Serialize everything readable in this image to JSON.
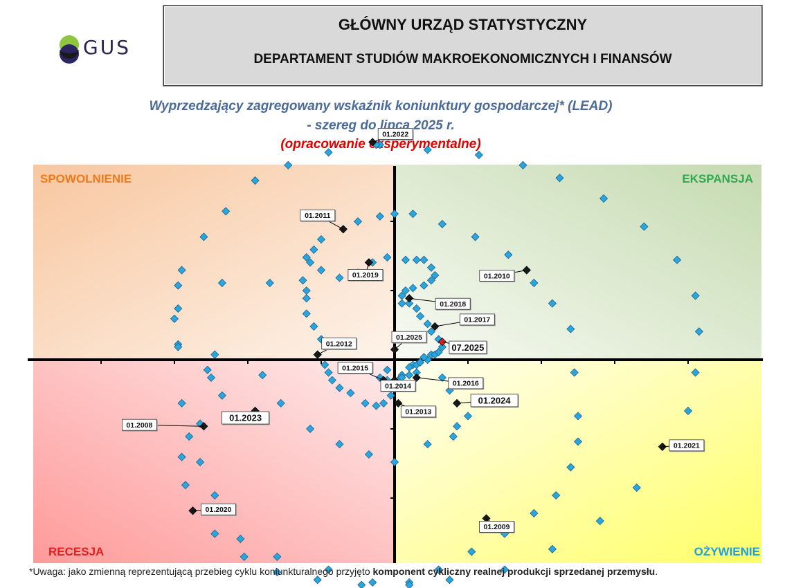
{
  "header": {
    "logo_text": "GUS",
    "title": "GŁÓWNY URZĄD STATYSTYCZNY",
    "subtitle": "DEPARTAMENT STUDIÓW MAKROEKONOMICZNYCH I FINANSÓW"
  },
  "chart_title": {
    "line1": "Wyprzedzający zagregowany wskaźnik koniunktury gospodarczej* (LEAD)",
    "line2": "- szereg do lipca 2025 r.",
    "line3": "(opracowanie eksperymentalne)"
  },
  "footnote": {
    "prefix": "*Uwaga: jako zmienną reprezentującą przebieg cyklu koniunkturalnego przyjęto ",
    "bold": "komponent cykliczny realnej produkcji sprzedanej przemysłu",
    "suffix": "."
  },
  "colors": {
    "marker": "#2aa6df",
    "marker_stroke": "#1d5f8a",
    "labeled_marker": "#1a1a1a",
    "current_marker": "#e02020",
    "spowolnienie": "#f07a1a",
    "ekspansja": "#2fa84f",
    "recesja": "#e02020",
    "ozywienie": "#1aa0dd"
  },
  "chart_data": {
    "type": "scatter",
    "title": "Wyprzedzający zagregowany wskaźnik koniunktury gospodarczej* (LEAD)",
    "xlim": [
      -1.0,
      1.0
    ],
    "ylim": [
      -1.0,
      1.0
    ],
    "grid": false,
    "quadrants": {
      "top_left": "SPOWOLNIENIE",
      "top_right": "EKSPANSJA",
      "bottom_left": "RECESJA",
      "bottom_right": "OŻYWIENIE"
    },
    "labeled_points": [
      {
        "label": "01.2022",
        "x": -0.06,
        "y": 0.85
      },
      {
        "label": "01.2011",
        "x": -0.14,
        "y": 0.51
      },
      {
        "label": "01.2019",
        "x": -0.07,
        "y": 0.38
      },
      {
        "label": "01.2010",
        "x": 0.36,
        "y": 0.35
      },
      {
        "label": "01.2018",
        "x": 0.04,
        "y": 0.24
      },
      {
        "label": "01.2017",
        "x": 0.11,
        "y": 0.13
      },
      {
        "label": "07.2025",
        "x": 0.13,
        "y": 0.07
      },
      {
        "label": "01.2025",
        "x": 0.0,
        "y": 0.04
      },
      {
        "label": "01.2012",
        "x": -0.21,
        "y": 0.02
      },
      {
        "label": "01.2015",
        "x": -0.03,
        "y": -0.08
      },
      {
        "label": "01.2014",
        "x": 0.0,
        "y": -0.08
      },
      {
        "label": "01.2016",
        "x": 0.06,
        "y": -0.07
      },
      {
        "label": "01.2013",
        "x": 0.01,
        "y": -0.17
      },
      {
        "label": "01.2024",
        "x": 0.17,
        "y": -0.17
      },
      {
        "label": "01.2023",
        "x": -0.38,
        "y": -0.2
      },
      {
        "label": "01.2008",
        "x": -0.52,
        "y": -0.26
      },
      {
        "label": "01.2021",
        "x": 0.73,
        "y": -0.34
      },
      {
        "label": "01.2020",
        "x": -0.55,
        "y": -0.59
      },
      {
        "label": "01.2009",
        "x": 0.25,
        "y": -0.62
      }
    ],
    "points": [
      [
        -0.51,
        -0.04
      ],
      [
        -0.5,
        -0.07
      ],
      [
        -0.47,
        -0.14
      ],
      [
        -0.53,
        -0.25
      ],
      [
        -0.58,
        -0.38
      ],
      [
        -0.57,
        -0.49
      ],
      [
        -0.55,
        -0.59
      ],
      [
        -0.49,
        -0.68
      ],
      [
        -0.41,
        -0.77
      ],
      [
        -0.32,
        -0.83
      ],
      [
        -0.21,
        -0.86
      ],
      [
        -0.09,
        -0.88
      ],
      [
        0.04,
        -0.87
      ],
      [
        0.12,
        -0.82
      ],
      [
        0.21,
        -0.75
      ],
      [
        0.3,
        -0.68
      ],
      [
        0.38,
        -0.6
      ],
      [
        0.44,
        -0.53
      ],
      [
        0.48,
        -0.42
      ],
      [
        0.5,
        -0.32
      ],
      [
        0.5,
        -0.22
      ],
      [
        0.49,
        -0.05
      ],
      [
        0.48,
        0.12
      ],
      [
        0.43,
        0.22
      ],
      [
        0.38,
        0.3
      ],
      [
        0.36,
        0.35
      ],
      [
        0.31,
        0.41
      ],
      [
        0.22,
        0.48
      ],
      [
        0.13,
        0.53
      ],
      [
        0.05,
        0.57
      ],
      [
        0.0,
        0.57
      ],
      [
        -0.04,
        0.56
      ],
      [
        -0.1,
        0.54
      ],
      [
        -0.14,
        0.51
      ],
      [
        -0.2,
        0.47
      ],
      [
        -0.22,
        0.43
      ],
      [
        -0.23,
        0.38
      ],
      [
        -0.25,
        0.31
      ],
      [
        -0.24,
        0.27
      ],
      [
        -0.24,
        0.24
      ],
      [
        -0.24,
        0.18
      ],
      [
        -0.22,
        0.13
      ],
      [
        -0.2,
        0.08
      ],
      [
        -0.21,
        0.02
      ],
      [
        -0.19,
        -0.02
      ],
      [
        -0.18,
        -0.05
      ],
      [
        -0.17,
        -0.08
      ],
      [
        -0.15,
        -0.11
      ],
      [
        -0.12,
        -0.13
      ],
      [
        -0.08,
        -0.17
      ],
      [
        -0.05,
        -0.18
      ],
      [
        -0.03,
        -0.17
      ],
      [
        -0.01,
        -0.14
      ],
      [
        0.0,
        -0.11
      ],
      [
        0.01,
        -0.08
      ],
      [
        0.02,
        -0.06
      ],
      [
        -0.02,
        -0.04
      ],
      [
        -0.04,
        -0.07
      ],
      [
        -0.03,
        -0.08
      ],
      [
        -0.02,
        -0.08
      ],
      [
        0.0,
        -0.08
      ],
      [
        0.02,
        -0.07
      ],
      [
        0.04,
        -0.06
      ],
      [
        0.06,
        -0.05
      ],
      [
        0.05,
        -0.02
      ],
      [
        0.04,
        -0.03
      ],
      [
        0.06,
        -0.02
      ],
      [
        0.07,
        -0.01
      ],
      [
        0.09,
        0.0
      ],
      [
        0.08,
        0.01
      ],
      [
        0.1,
        0.02
      ],
      [
        0.11,
        0.02
      ],
      [
        0.12,
        0.03
      ],
      [
        0.13,
        0.05
      ],
      [
        0.12,
        0.08
      ],
      [
        0.1,
        0.11
      ],
      [
        0.09,
        0.14
      ],
      [
        0.07,
        0.17
      ],
      [
        0.06,
        0.2
      ],
      [
        0.04,
        0.22
      ],
      [
        0.02,
        0.22
      ],
      [
        0.02,
        0.25
      ],
      [
        0.03,
        0.27
      ],
      [
        0.05,
        0.28
      ],
      [
        0.08,
        0.29
      ],
      [
        0.1,
        0.31
      ],
      [
        0.11,
        0.33
      ],
      [
        0.1,
        0.36
      ],
      [
        0.08,
        0.39
      ],
      [
        0.06,
        0.39
      ],
      [
        0.03,
        0.39
      ],
      [
        -0.02,
        0.4
      ],
      [
        -0.06,
        0.38
      ],
      [
        -0.07,
        0.38
      ],
      [
        -0.1,
        0.34
      ],
      [
        -0.15,
        0.32
      ],
      [
        -0.2,
        0.35
      ],
      [
        -0.24,
        0.4
      ],
      [
        -0.34,
        0.3
      ],
      [
        -0.47,
        0.3
      ],
      [
        -0.59,
        0.29
      ],
      [
        -0.6,
        0.16
      ],
      [
        -0.59,
        0.06
      ],
      [
        -0.49,
        0.02
      ],
      [
        -0.36,
        -0.06
      ],
      [
        -0.31,
        -0.17
      ],
      [
        -0.23,
        -0.27
      ],
      [
        -0.15,
        -0.33
      ],
      [
        -0.07,
        -0.37
      ],
      [
        0.0,
        -0.4
      ],
      [
        0.09,
        -0.33
      ],
      [
        0.16,
        -0.3
      ],
      [
        0.17,
        -0.26
      ],
      [
        0.2,
        -0.22
      ],
      [
        0.17,
        -0.17
      ],
      [
        0.15,
        -0.12
      ],
      [
        0.13,
        -0.07
      ],
      [
        -0.04,
        0.84
      ],
      [
        0.09,
        0.82
      ],
      [
        0.23,
        0.8
      ],
      [
        0.35,
        0.76
      ],
      [
        0.45,
        0.71
      ],
      [
        0.57,
        0.63
      ],
      [
        0.68,
        0.52
      ],
      [
        0.77,
        0.39
      ],
      [
        0.82,
        0.25
      ],
      [
        0.83,
        0.11
      ],
      [
        0.82,
        -0.05
      ],
      [
        0.8,
        -0.2
      ],
      [
        0.73,
        -0.34
      ],
      [
        0.66,
        -0.5
      ],
      [
        0.56,
        -0.63
      ],
      [
        0.43,
        -0.74
      ],
      [
        0.3,
        -0.82
      ],
      [
        0.15,
        -0.86
      ],
      [
        0.04,
        -0.88
      ],
      [
        -0.06,
        -0.87
      ],
      [
        -0.18,
        -0.82
      ],
      [
        -0.32,
        -0.77
      ],
      [
        -0.42,
        -0.7
      ],
      [
        -0.49,
        -0.53
      ],
      [
        -0.53,
        -0.4
      ],
      [
        -0.56,
        -0.3
      ],
      [
        -0.58,
        -0.17
      ],
      [
        -0.59,
        0.05
      ],
      [
        -0.59,
        0.2
      ],
      [
        -0.58,
        0.35
      ],
      [
        -0.52,
        0.48
      ],
      [
        -0.46,
        0.58
      ],
      [
        -0.38,
        0.7
      ],
      [
        -0.29,
        0.76
      ],
      [
        -0.18,
        0.81
      ],
      [
        -0.05,
        0.84
      ]
    ]
  }
}
